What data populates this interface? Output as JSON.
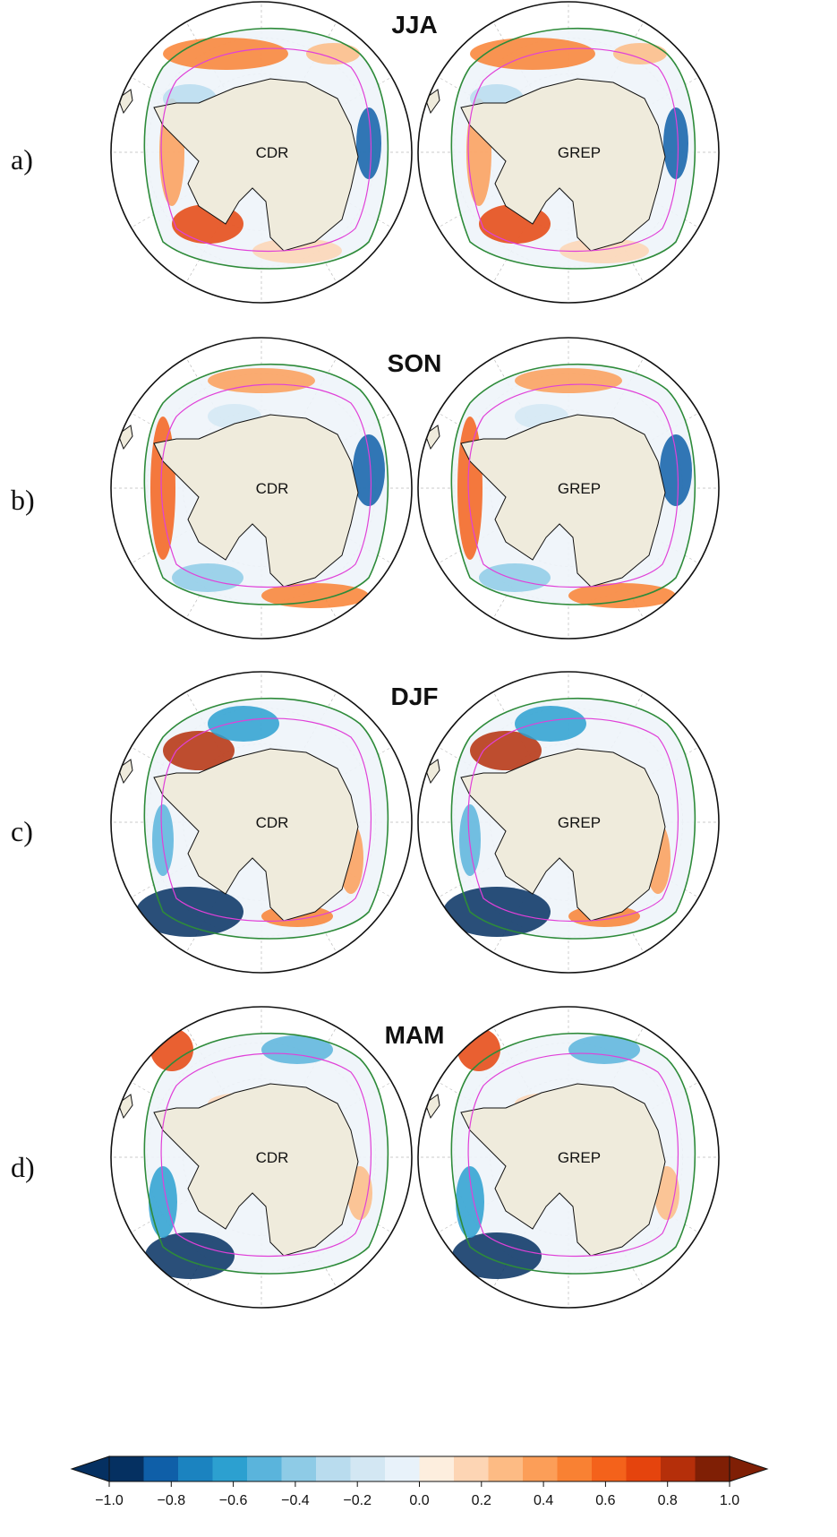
{
  "rows": [
    {
      "label": "a)",
      "season": "JJA"
    },
    {
      "label": "b)",
      "season": "SON"
    },
    {
      "label": "c)",
      "season": "DJF"
    },
    {
      "label": "d)",
      "season": "MAM"
    }
  ],
  "panel_labels": [
    "CDR",
    "GREP"
  ],
  "colorbar": {
    "ticks": [
      "−1.0",
      "−0.8",
      "−0.6",
      "−0.4",
      "−0.2",
      "0.0",
      "0.2",
      "0.4",
      "0.6",
      "0.8",
      "1.0"
    ],
    "range": [
      -1.0,
      1.0
    ],
    "extend": "both",
    "colors": [
      "#053061",
      "#0f5fa8",
      "#1b83c0",
      "#2ca0d0",
      "#5ab4dc",
      "#8ecbe6",
      "#b9dcee",
      "#d3e7f3",
      "#e8f2fa",
      "#fdeede",
      "#fdd5b4",
      "#fdbb84",
      "#fc9e58",
      "#f98133",
      "#f4621b",
      "#e5440d",
      "#b52f0a",
      "#7f1f05"
    ]
  },
  "palette": {
    "land": "#efebdc",
    "ice_edge_outer": "#2e8b3a",
    "ice_edge_inner": "#e040d8",
    "frame": "#111111",
    "grid": "#bbbbbb"
  }
}
